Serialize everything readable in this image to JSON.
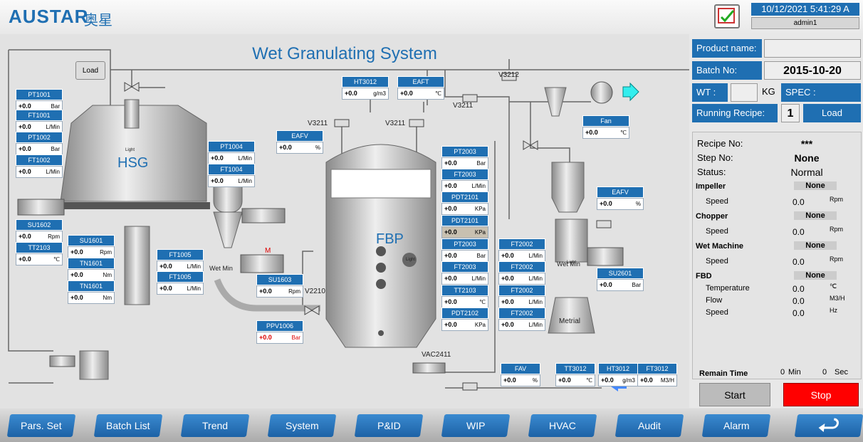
{
  "header": {
    "logo": "AUSTAR",
    "logo_cn": "奥星",
    "datetime": "10/12/2021 5:41:29 A",
    "user": "admin1"
  },
  "title": "Wet Granulating System",
  "load_button": "Load",
  "instruments": [
    {
      "tag": "PT1001",
      "value": "+0.0",
      "unit": "Bar"
    },
    {
      "tag": "FT1001",
      "value": "+0.0",
      "unit": "L/Min"
    },
    {
      "tag": "PT1002",
      "value": "+0.0",
      "unit": "Bar"
    },
    {
      "tag": "FT1002",
      "value": "+0.0",
      "unit": "L/Min"
    },
    {
      "tag": "SU1602",
      "value": "+0.0",
      "unit": "Rpm"
    },
    {
      "tag": "TT2103",
      "value": "+0.0",
      "unit": "℃"
    },
    {
      "tag": "SU1601",
      "value": "+0.0",
      "unit": "Rpm"
    },
    {
      "tag": "TN1601",
      "value": "+0.0",
      "unit": "Nm"
    },
    {
      "tag": "TN1601",
      "value": "+0.0",
      "unit": "Nm"
    },
    {
      "tag": "PT1004",
      "value": "+0.0",
      "unit": "L/Min"
    },
    {
      "tag": "FT1004",
      "value": "+0.0",
      "unit": "L/Min"
    },
    {
      "tag": "FT1005",
      "value": "+0.0",
      "unit": "L/Min"
    },
    {
      "tag": "FT1005",
      "value": "+0.0",
      "unit": "L/Min"
    },
    {
      "tag": "SU1603",
      "value": "+0.0",
      "unit": "Rpm"
    },
    {
      "tag": "PPV1006",
      "value": "+0.0",
      "unit": "Bar"
    },
    {
      "tag": "EAFV",
      "value": "+0.0",
      "unit": "%"
    },
    {
      "tag": "HT3012",
      "value": "+0.0",
      "unit": "g/m3"
    },
    {
      "tag": "EAFT",
      "value": "+0.0",
      "unit": "℃"
    },
    {
      "tag": "Fan",
      "value": "+0.0",
      "unit": "℃"
    },
    {
      "tag": "PT2003",
      "value": "+0.0",
      "unit": "Bar"
    },
    {
      "tag": "FT2003",
      "value": "+0.0",
      "unit": "L/Min"
    },
    {
      "tag": "PDT2101",
      "value": "+0.0",
      "unit": "KPa"
    },
    {
      "tag": "PDT2101",
      "value": "+0.0",
      "unit": "KPa"
    },
    {
      "tag": "PT2003",
      "value": "+0.0",
      "unit": "Bar"
    },
    {
      "tag": "FT2003",
      "value": "+0.0",
      "unit": "L/Min"
    },
    {
      "tag": "TT2103",
      "value": "+0.0",
      "unit": "℃"
    },
    {
      "tag": "PDT2102",
      "value": "+0.0",
      "unit": "KPa"
    },
    {
      "tag": "FT2002",
      "value": "+0.0",
      "unit": "L/Min"
    },
    {
      "tag": "FT2002",
      "value": "+0.0",
      "unit": "L/Min"
    },
    {
      "tag": "FT2002",
      "value": "+0.0",
      "unit": "L/Min"
    },
    {
      "tag": "FT2002",
      "value": "+0.0",
      "unit": "L/Min"
    },
    {
      "tag": "EAFV",
      "value": "+0.0",
      "unit": "%"
    },
    {
      "tag": "SU2601",
      "value": "+0.0",
      "unit": "Bar"
    },
    {
      "tag": "FAV",
      "value": "+0.0",
      "unit": "%"
    },
    {
      "tag": "TT3012",
      "value": "+0.0",
      "unit": "℃"
    },
    {
      "tag": "HT3012",
      "value": "+0.0",
      "unit": "g/m3"
    },
    {
      "tag": "FT3012",
      "value": "+0.0",
      "unit": "M3/H"
    }
  ],
  "labels": [
    "V3212",
    "V3211",
    "V3211",
    "V3211",
    "V2210",
    "VAC2411",
    "HSG",
    "FBP",
    "Light",
    "Light",
    "Light",
    "Metrial",
    "M",
    "Wet Min",
    "Wet Min"
  ],
  "panel": {
    "product_name": "Product name:",
    "batch_no": "Batch No:",
    "batch_value": "2015-10-20",
    "wt": "WT :",
    "kg": "KG",
    "spec": "SPEC :",
    "running_recipe": "Running Recipe:",
    "recipe_value": "1",
    "load": "Load",
    "status": [
      {
        "label": "Recipe No:",
        "value": "***"
      },
      {
        "label": "Step No:",
        "value": "None"
      },
      {
        "label": "Status:",
        "value": "Normal"
      }
    ],
    "groups": [
      {
        "name": "Impeller",
        "state": "None",
        "rows": [
          {
            "label": "Speed",
            "value": "0.0",
            "unit": "Rpm"
          }
        ]
      },
      {
        "name": "Chopper",
        "state": "None",
        "rows": [
          {
            "label": "Speed",
            "value": "0.0",
            "unit": "Rpm"
          }
        ]
      },
      {
        "name": "Wet Machine",
        "state": "None",
        "rows": [
          {
            "label": "Speed",
            "value": "0.0",
            "unit": "Rpm"
          }
        ]
      },
      {
        "name": "FBD",
        "state": "None",
        "rows": [
          {
            "label": "Temperature",
            "value": "0.0",
            "unit": "℃"
          },
          {
            "label": "Flow",
            "value": "0.0",
            "unit": "M3/H"
          },
          {
            "label": "Speed",
            "value": "0.0",
            "unit": "Hz"
          }
        ]
      }
    ],
    "remain_time": "Remain Time",
    "min_value": "0",
    "min": "Min",
    "sec_value": "0",
    "sec": "Sec",
    "start": "Start",
    "stop": "Stop"
  },
  "nav": [
    "Pars. Set",
    "Batch List",
    "Trend",
    "System",
    "P&ID",
    "WIP",
    "HVAC",
    "Audit",
    "Alarm"
  ]
}
